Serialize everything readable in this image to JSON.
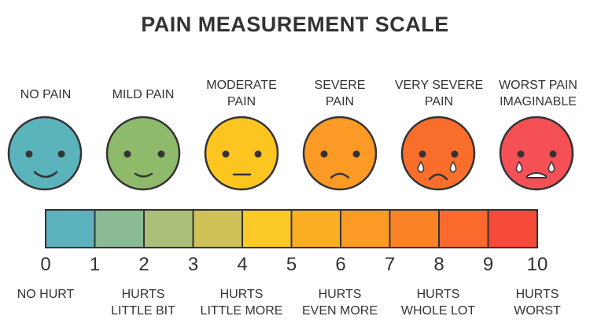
{
  "title": "PAIN MEASUREMENT SCALE",
  "levels": [
    {
      "top_label": "NO PAIN",
      "face": "smile-face-icon",
      "color": "#5bb3bc"
    },
    {
      "top_label": "MILD PAIN",
      "face": "slight-smile-face-icon",
      "color": "#8fb96b"
    },
    {
      "top_label": "MODERATE\nPAIN",
      "face": "neutral-face-icon",
      "color": "#fcc520"
    },
    {
      "top_label": "SEVERE\nPAIN",
      "face": "frown-face-icon",
      "color": "#fb9a24"
    },
    {
      "top_label": "VERY SEVERE\nPAIN",
      "face": "crying-face-icon",
      "color": "#fa6e2c"
    },
    {
      "top_label": "WORST PAIN\nIMAGINABLE",
      "face": "crying-grimace-face-icon",
      "color": "#f45056"
    }
  ],
  "scale": {
    "numbers": [
      "0",
      "1",
      "2",
      "3",
      "4",
      "5",
      "6",
      "7",
      "8",
      "9",
      "10"
    ],
    "segment_colors": [
      "#5ab3bd",
      "#8bbb95",
      "#a9bf77",
      "#cfc257",
      "#fcc927",
      "#fcae24",
      "#fb9a25",
      "#fa8326",
      "#f96a2c",
      "#f84a38"
    ]
  },
  "bottom_labels": [
    "NO HURT",
    "HURTS\nLITTLE BIT",
    "HURTS\nLITTLE MORE",
    "HURTS\nEVEN MORE",
    "HURTS\nWHOLE LOT",
    "HURTS\nWORST"
  ]
}
